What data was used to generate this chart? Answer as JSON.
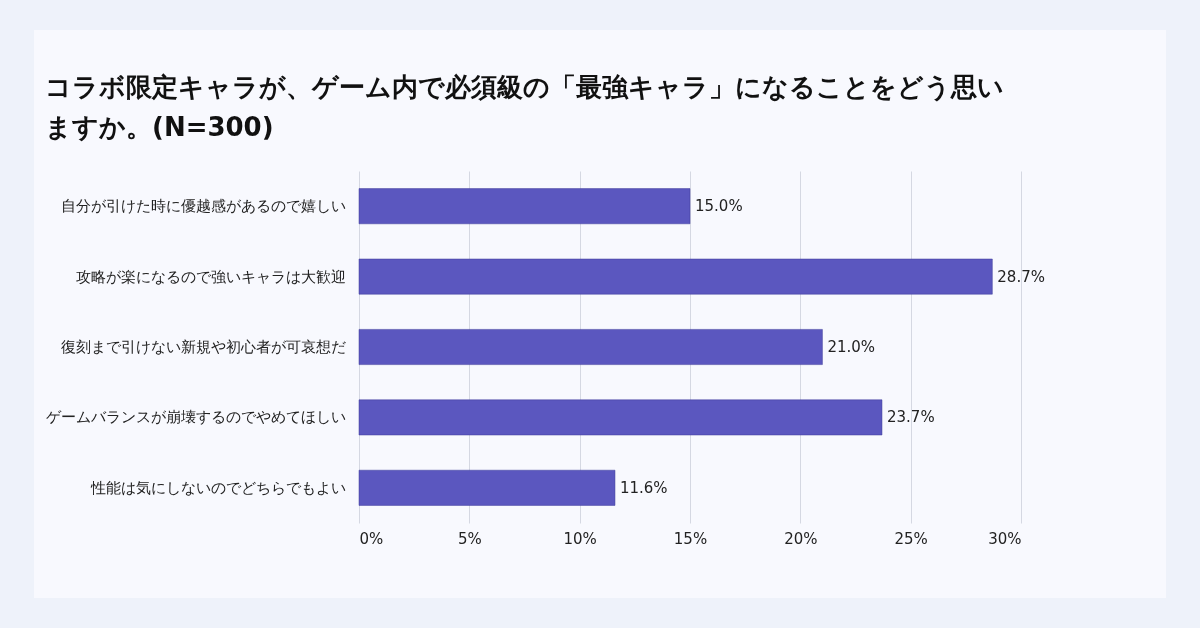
{
  "chart_data": {
    "type": "bar",
    "orientation": "horizontal",
    "title": "コラボ限定キャラが、ゲーム内で必須級の「最強キャラ」になることをどう思いますか。(N=300)",
    "categories": [
      "自分が引けた時に優越感があるので嬉しい",
      "攻略が楽になるので強いキャラは大歓迎",
      "復刻まで引けない新規や初心者が可哀想だ",
      "ゲームバランスが崩壊するのでやめてほしい",
      "性能は気にしないのでどちらでもよい"
    ],
    "values": [
      15.0,
      28.7,
      21.0,
      23.7,
      11.6
    ],
    "value_labels": [
      "15.0%",
      "28.7%",
      "21.0%",
      "23.7%",
      "11.6%"
    ],
    "color": "#5b57bf",
    "xlim": [
      0,
      30
    ],
    "xticks": [
      {
        "value": 0,
        "label": "0%"
      },
      {
        "value": 5,
        "label": "5%"
      },
      {
        "value": 10,
        "label": "10%"
      },
      {
        "value": 15,
        "label": "15%"
      },
      {
        "value": 20,
        "label": "20%"
      },
      {
        "value": 25,
        "label": "25%"
      },
      {
        "value": 30,
        "label": "30%"
      }
    ],
    "grid": "x"
  }
}
